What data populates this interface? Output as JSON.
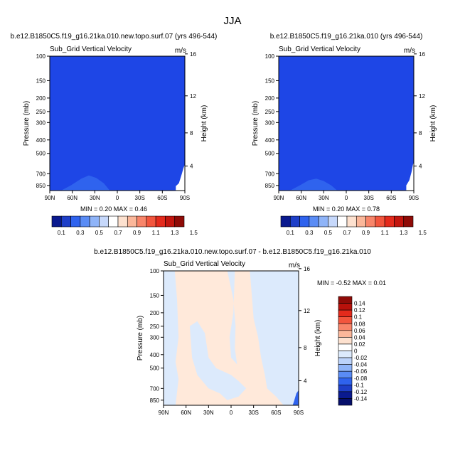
{
  "page": {
    "title": "JJA"
  },
  "chart_data": [
    {
      "type": "heatmap",
      "title": "b.e12.B1850C5.f19_g16.21ka.010.new.topo.surf.07 (yrs 496-544)",
      "subtitle": "Sub_Grid Vertical Velocity",
      "units": "m/s",
      "xlabel": "",
      "ylabel": "Pressure (mb)",
      "y2label": "Height (km)",
      "x_ticks": [
        "90N",
        "60N",
        "30N",
        "0",
        "30S",
        "60S",
        "90S"
      ],
      "x_range": [
        90,
        -90
      ],
      "y_ticks": [
        100,
        150,
        200,
        250,
        300,
        400,
        500,
        700,
        850
      ],
      "y_range": [
        100,
        925
      ],
      "y_scale": "log",
      "y2_ticks": [
        4,
        8,
        12,
        16
      ],
      "min": "0.20",
      "max": "0.46",
      "min_label": "MIN = ",
      "max_label": "MAX = ",
      "colorbar_labels": [
        "0.1",
        "0.3",
        "0.5",
        "0.7",
        "0.9",
        "1.1",
        "1.3",
        "1.5"
      ],
      "field_color": "#1e46e6",
      "bump_color": "#2f63ee",
      "bump_points": [
        [
          75,
          925
        ],
        [
          62,
          850
        ],
        [
          48,
          760
        ],
        [
          38,
          720
        ],
        [
          28,
          750
        ],
        [
          18,
          820
        ],
        [
          10,
          925
        ]
      ],
      "missing_points": [
        [
          -78,
          925
        ],
        [
          -78,
          860
        ],
        [
          -82,
          820
        ],
        [
          -86,
          700
        ],
        [
          -88,
          640
        ],
        [
          -90,
          600
        ],
        [
          -90,
          925
        ]
      ]
    },
    {
      "type": "heatmap",
      "title": "b.e12.B1850C5.f19_g16.21ka.010 (yrs 496-544)",
      "subtitle": "Sub_Grid Vertical Velocity",
      "units": "m/s",
      "xlabel": "",
      "ylabel": "Pressure (mb)",
      "y2label": "Height (km)",
      "x_ticks": [
        "90N",
        "60N",
        "30N",
        "0",
        "30S",
        "60S",
        "90S"
      ],
      "x_range": [
        90,
        -90
      ],
      "y_ticks": [
        100,
        150,
        200,
        250,
        300,
        400,
        500,
        700,
        850
      ],
      "y_range": [
        100,
        925
      ],
      "y_scale": "log",
      "y2_ticks": [
        4,
        8,
        12,
        16
      ],
      "min": "0.20",
      "max": "0.78",
      "min_label": "MIN = ",
      "max_label": "MAX = ",
      "colorbar_labels": [
        "0.1",
        "0.3",
        "0.5",
        "0.7",
        "0.9",
        "1.1",
        "1.3",
        "1.5"
      ],
      "field_color": "#1e46e6",
      "bump_color": "#2f63ee",
      "bump_points": [
        [
          75,
          925
        ],
        [
          62,
          850
        ],
        [
          50,
          780
        ],
        [
          40,
          760
        ],
        [
          30,
          790
        ],
        [
          20,
          850
        ],
        [
          12,
          925
        ]
      ],
      "missing_points": [
        [
          -80,
          925
        ],
        [
          -80,
          850
        ],
        [
          -84,
          780
        ],
        [
          -87,
          680
        ],
        [
          -89,
          600
        ],
        [
          -90,
          580
        ],
        [
          -90,
          925
        ]
      ]
    },
    {
      "type": "heatmap",
      "title": "b.e12.B1850C5.f19_g16.21ka.010.new.topo.surf.07 - b.e12.B1850C5.f19_g16.21ka.010",
      "subtitle": "Sub_Grid Vertical Velocity",
      "units": "m/s",
      "xlabel": "",
      "ylabel": "Pressure (mb)",
      "y2label": "Height (km)",
      "x_ticks": [
        "90N",
        "60N",
        "30N",
        "0",
        "30S",
        "60S",
        "90S"
      ],
      "x_range": [
        90,
        -90
      ],
      "y_ticks": [
        100,
        150,
        200,
        250,
        300,
        400,
        500,
        700,
        850
      ],
      "y_range": [
        100,
        925
      ],
      "y_scale": "log",
      "y2_ticks": [
        4,
        8,
        12,
        16
      ],
      "min": "-0.52",
      "max": "0.01",
      "min_label": "MIN = ",
      "max_label": "MAX = ",
      "colorbar_labels": [
        "0.14",
        "0.12",
        "0.1",
        "0.08",
        "0.06",
        "0.04",
        "0.02",
        "0",
        "-0.02",
        "-0.04",
        "-0.06",
        "-0.08",
        "-0.1",
        "-0.12",
        "-0.14"
      ],
      "field_color": "#ffe9da",
      "negative_color": "#dceafc",
      "negative_regions": [
        [
          [
            90,
            100
          ],
          [
            75,
            100
          ],
          [
            72,
            160
          ],
          [
            70,
            300
          ],
          [
            74,
            450
          ],
          [
            70,
            600
          ],
          [
            74,
            925
          ],
          [
            90,
            925
          ]
        ],
        [
          [
            55,
            250
          ],
          [
            45,
            230
          ],
          [
            35,
            280
          ],
          [
            30,
            420
          ],
          [
            20,
            500
          ],
          [
            0,
            560
          ],
          [
            -10,
            620
          ],
          [
            -20,
            700
          ],
          [
            -10,
            800
          ],
          [
            5,
            850
          ],
          [
            15,
            760
          ],
          [
            30,
            700
          ],
          [
            45,
            560
          ],
          [
            52,
            420
          ]
        ],
        [
          [
            5,
            100
          ],
          [
            -5,
            100
          ],
          [
            -3,
            200
          ],
          [
            2,
            300
          ],
          [
            0,
            420
          ],
          [
            -8,
            470
          ],
          [
            -5,
            360
          ],
          [
            -6,
            250
          ],
          [
            -3,
            160
          ]
        ],
        [
          [
            -25,
            100
          ],
          [
            -90,
            100
          ],
          [
            -90,
            925
          ],
          [
            -70,
            925
          ],
          [
            -60,
            800
          ],
          [
            -48,
            700
          ],
          [
            -45,
            560
          ],
          [
            -40,
            420
          ],
          [
            -36,
            300
          ],
          [
            -30,
            220
          ],
          [
            -28,
            160
          ]
        ]
      ],
      "strong_negative_points": [
        [
          -82,
          925
        ],
        [
          -84,
          860
        ],
        [
          -87,
          760
        ],
        [
          -90,
          720
        ],
        [
          -90,
          925
        ]
      ]
    }
  ],
  "colorbar_colors": {
    "bar1": [
      "#0a1a8f",
      "#1e3fc8",
      "#2f63ee",
      "#5a8cf5",
      "#8fb4f8",
      "#c6d8fb",
      "#ffffff",
      "#fde1cf",
      "#fbb79a",
      "#f8856a",
      "#f2553d",
      "#e42a1c",
      "#c2150e",
      "#8f0b07"
    ],
    "bar2": [
      "#8f0b07",
      "#b8110b",
      "#e42a1c",
      "#f2553d",
      "#f8856a",
      "#fbb79a",
      "#fde1cf",
      "#ffffff",
      "#dceafc",
      "#bcd3fa",
      "#8fb4f8",
      "#5a8cf5",
      "#2f63ee",
      "#1e3fc8",
      "#0a1a8f",
      "#050e6a"
    ]
  }
}
